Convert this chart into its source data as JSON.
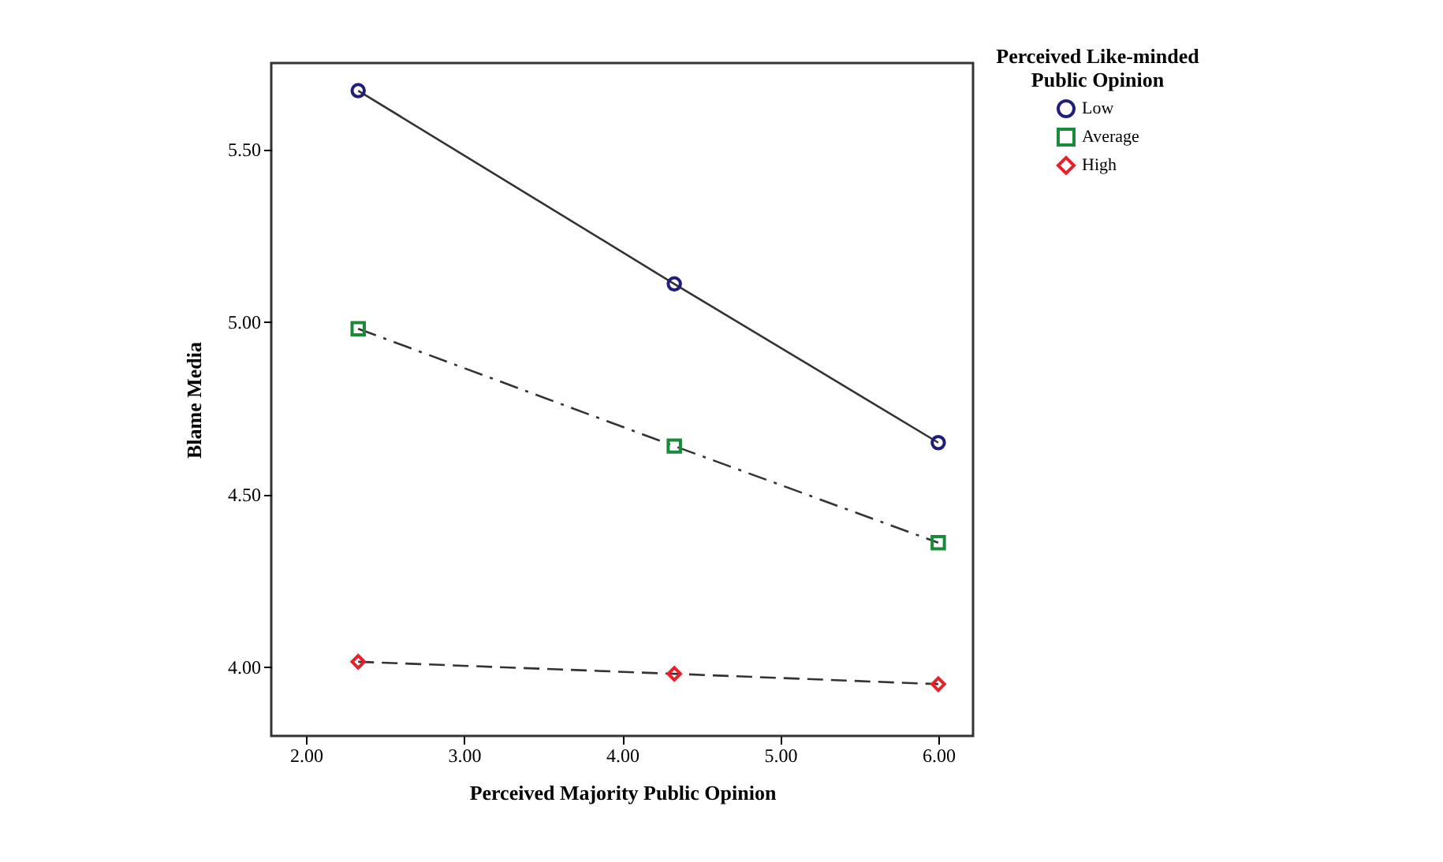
{
  "chart_data": {
    "type": "line",
    "xlabel": "Perceived Majority Public Opinion",
    "ylabel": "Blame Media",
    "legend_title": "Perceived Like-minded Public Opinion",
    "legend": "top right",
    "grid": false,
    "x": [
      2.33,
      4.33,
      6.0
    ],
    "series": [
      {
        "name": "Low",
        "color": "#1f1f7a",
        "marker": "circle",
        "line_style": "solid",
        "values": [
          5.67,
          5.11,
          4.65
        ]
      },
      {
        "name": "Average",
        "color": "#1a8a3a",
        "marker": "square",
        "line_style": "dashdot",
        "values": [
          4.98,
          4.64,
          4.36
        ]
      },
      {
        "name": "High",
        "color": "#e8202a",
        "marker": "diamond",
        "line_style": "dashed",
        "values": [
          4.015,
          3.98,
          3.95
        ]
      }
    ],
    "xlim": [
      1.78,
      6.22
    ],
    "ylim": [
      3.8,
      5.75
    ],
    "xticks": [
      {
        "value": 2,
        "label": "2.00"
      },
      {
        "value": 3,
        "label": "3.00"
      },
      {
        "value": 4,
        "label": "4.00"
      },
      {
        "value": 5,
        "label": "5.00"
      },
      {
        "value": 6,
        "label": "6.00"
      }
    ],
    "yticks": [
      {
        "value": 4,
        "label": "4.00"
      },
      {
        "value": 4.5,
        "label": "4.50"
      },
      {
        "value": 5,
        "label": "5.00"
      },
      {
        "value": 5.5,
        "label": "5.50"
      }
    ]
  }
}
